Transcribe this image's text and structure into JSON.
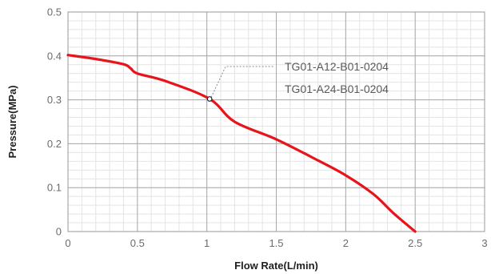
{
  "chart_data": {
    "type": "line",
    "title": "",
    "xlabel": "Flow Rate(L/min)",
    "ylabel": "Pressure(MPa)",
    "xlim": [
      0,
      3
    ],
    "ylim": [
      0,
      0.5
    ],
    "x_ticks": [
      0,
      0.5,
      1,
      1.5,
      2,
      2.5,
      3
    ],
    "x_tick_labels": [
      "0",
      "0.5",
      "1",
      "1.5",
      "2",
      "2.5",
      "3"
    ],
    "y_ticks": [
      0,
      0.1,
      0.2,
      0.3,
      0.4,
      0.5
    ],
    "y_tick_labels": [
      "0",
      "0.1",
      "0.2",
      "0.3",
      "0.4",
      "0.5"
    ],
    "grid": true,
    "minor_grid": true,
    "series": [
      {
        "color": "#e8141c",
        "x": [
          0,
          0.2,
          0.4,
          0.45,
          0.5,
          0.7,
          1.02,
          1.2,
          1.5,
          1.8,
          2.0,
          2.2,
          2.35,
          2.5
        ],
        "y": [
          0.402,
          0.393,
          0.381,
          0.372,
          0.36,
          0.343,
          0.302,
          0.25,
          0.21,
          0.162,
          0.128,
          0.085,
          0.04,
          0.0
        ]
      }
    ],
    "annotations": [
      {
        "text_lines": [
          "TG01-A12-B01-0204",
          "TG01-A24-B01-0204"
        ],
        "point": {
          "x": 1.02,
          "y": 0.302
        }
      }
    ]
  }
}
